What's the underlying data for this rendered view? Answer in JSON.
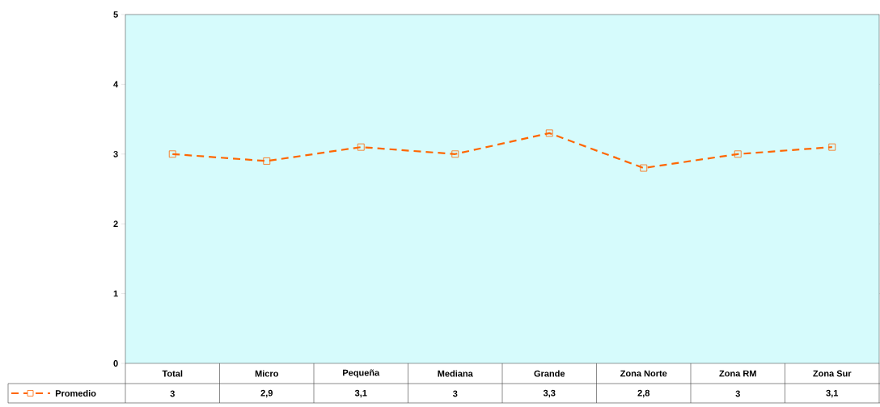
{
  "chart_data": {
    "type": "line",
    "categories": [
      "Total",
      "Micro",
      "Pequeña",
      "Mediana",
      "Grande",
      "Zona Norte",
      "Zona RM",
      "Zona Sur"
    ],
    "series": [
      {
        "name": "Promedio",
        "color": "#ff6600",
        "values": [
          3,
          2.9,
          3.1,
          3,
          3.3,
          2.8,
          3,
          3.1
        ],
        "value_labels": [
          "3",
          "2,9",
          "3,1",
          "3",
          "3,3",
          "2,8",
          "3",
          "3,1"
        ]
      }
    ],
    "ylim": [
      0,
      5
    ],
    "yticks": [
      0,
      1,
      2,
      3,
      4,
      5
    ],
    "marker": "square",
    "line_style": "dashed",
    "legend": "bottom left"
  }
}
